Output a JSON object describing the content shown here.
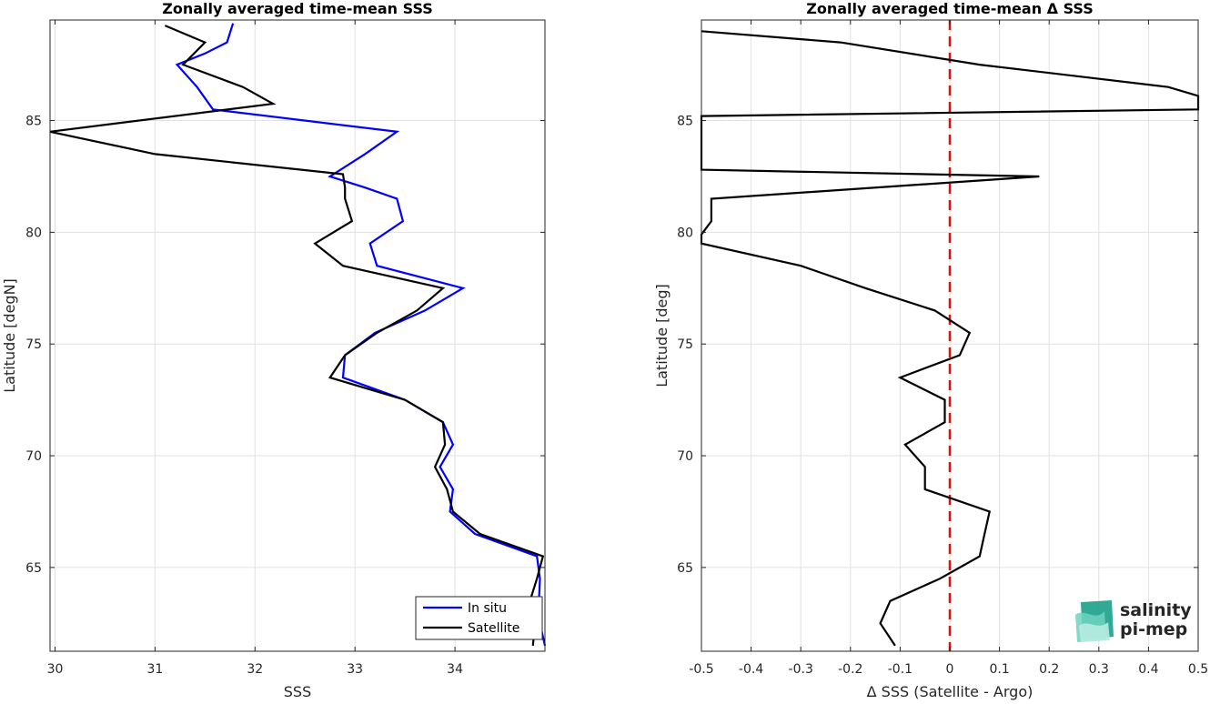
{
  "chart_data": [
    {
      "type": "line",
      "title": "Zonally averaged time-mean SSS",
      "xlabel": "SSS",
      "ylabel": "Latitude [degN]",
      "xlim": [
        29.95,
        34.9
      ],
      "ylim": [
        61.25,
        89.5
      ],
      "xticks": [
        "30",
        "31",
        "32",
        "33",
        "34"
      ],
      "yticks": [
        "65",
        "70",
        "75",
        "80",
        "85"
      ],
      "grid": true,
      "legend_position": "bottom-right",
      "series": [
        {
          "name": "In situ",
          "color": "#0000ff",
          "points": [
            [
              31.78,
              89.35
            ],
            [
              31.72,
              88.5
            ],
            [
              31.5,
              88.0
            ],
            [
              31.22,
              87.5
            ],
            [
              31.42,
              86.5
            ],
            [
              31.58,
              85.5
            ],
            [
              33.42,
              84.5
            ],
            [
              33.1,
              83.5
            ],
            [
              32.75,
              82.5
            ],
            [
              33.1,
              82.0
            ],
            [
              33.42,
              81.5
            ],
            [
              33.48,
              80.5
            ],
            [
              33.15,
              79.5
            ],
            [
              33.22,
              78.5
            ],
            [
              34.08,
              77.5
            ],
            [
              33.7,
              76.5
            ],
            [
              33.2,
              75.5
            ],
            [
              32.9,
              74.5
            ],
            [
              32.88,
              73.5
            ],
            [
              33.5,
              72.5
            ],
            [
              33.88,
              71.5
            ],
            [
              33.98,
              70.5
            ],
            [
              33.85,
              69.5
            ],
            [
              33.98,
              68.5
            ],
            [
              33.95,
              67.5
            ],
            [
              34.2,
              66.5
            ],
            [
              34.82,
              65.5
            ],
            [
              34.85,
              64.5
            ],
            [
              34.84,
              63.5
            ],
            [
              34.85,
              62.5
            ],
            [
              34.9,
              61.5
            ]
          ]
        },
        {
          "name": "Satellite",
          "color": "#000000",
          "points": [
            [
              31.1,
              89.25
            ],
            [
              31.5,
              88.5
            ],
            [
              31.28,
              87.5
            ],
            [
              31.88,
              86.5
            ],
            [
              32.18,
              85.75
            ],
            [
              29.95,
              84.5
            ],
            [
              31.0,
              83.5
            ],
            [
              32.88,
              82.6
            ],
            [
              32.9,
              82.0
            ],
            [
              32.9,
              81.5
            ],
            [
              32.97,
              80.5
            ],
            [
              32.6,
              79.5
            ],
            [
              32.88,
              78.5
            ],
            [
              33.88,
              77.5
            ],
            [
              33.62,
              76.5
            ],
            [
              33.22,
              75.5
            ],
            [
              32.9,
              74.5
            ],
            [
              32.75,
              73.5
            ],
            [
              33.5,
              72.5
            ],
            [
              33.88,
              71.5
            ],
            [
              33.9,
              70.5
            ],
            [
              33.8,
              69.5
            ],
            [
              33.92,
              68.5
            ],
            [
              33.98,
              67.5
            ],
            [
              34.25,
              66.5
            ],
            [
              34.88,
              65.5
            ],
            [
              34.82,
              64.5
            ],
            [
              34.75,
              63.5
            ],
            [
              34.8,
              62.5
            ],
            [
              34.78,
              61.5
            ]
          ]
        }
      ]
    },
    {
      "type": "line",
      "title": "Zonally averaged time-mean Δ SSS",
      "xlabel": "Δ SSS (Satellite - Argo)",
      "ylabel": "Latitude [deg]",
      "xlim": [
        -0.5,
        0.5
      ],
      "ylim": [
        61.25,
        89.5
      ],
      "xticks": [
        "-0.5",
        "-0.4",
        "-0.3",
        "-0.2",
        "-0.1",
        "0",
        "0.1",
        "0.2",
        "0.3",
        "0.4",
        "0.5"
      ],
      "yticks": [
        "65",
        "70",
        "75",
        "80",
        "85"
      ],
      "grid": true,
      "reference_line": {
        "x": 0,
        "color": "#dd1111",
        "style": "dashed"
      },
      "series": [
        {
          "color": "#000000",
          "points": [
            [
              -0.5,
              89.0
            ],
            [
              -0.22,
              88.5
            ],
            [
              0.06,
              87.5
            ],
            [
              0.44,
              86.5
            ],
            [
              0.5,
              86.1
            ],
            [
              0.5,
              85.5
            ],
            [
              -0.5,
              85.2
            ],
            [
              -0.5,
              82.8
            ],
            [
              0.18,
              82.5
            ],
            [
              -0.48,
              81.5
            ],
            [
              -0.48,
              80.5
            ],
            [
              -0.5,
              79.9
            ],
            [
              -0.5,
              79.5
            ],
            [
              -0.3,
              78.5
            ],
            [
              -0.17,
              77.5
            ],
            [
              -0.03,
              76.5
            ],
            [
              0.04,
              75.5
            ],
            [
              0.02,
              74.5
            ],
            [
              -0.1,
              73.5
            ],
            [
              -0.01,
              72.5
            ],
            [
              -0.01,
              71.5
            ],
            [
              -0.09,
              70.5
            ],
            [
              -0.05,
              69.5
            ],
            [
              -0.05,
              68.5
            ],
            [
              0.08,
              67.5
            ],
            [
              0.07,
              66.5
            ],
            [
              0.06,
              65.5
            ],
            [
              -0.02,
              64.5
            ],
            [
              -0.12,
              63.5
            ],
            [
              -0.14,
              62.5
            ],
            [
              -0.11,
              61.5
            ]
          ]
        }
      ]
    }
  ],
  "logo": {
    "line1": "salinity",
    "line2": "pi-mep",
    "color": "#1aa08a"
  }
}
